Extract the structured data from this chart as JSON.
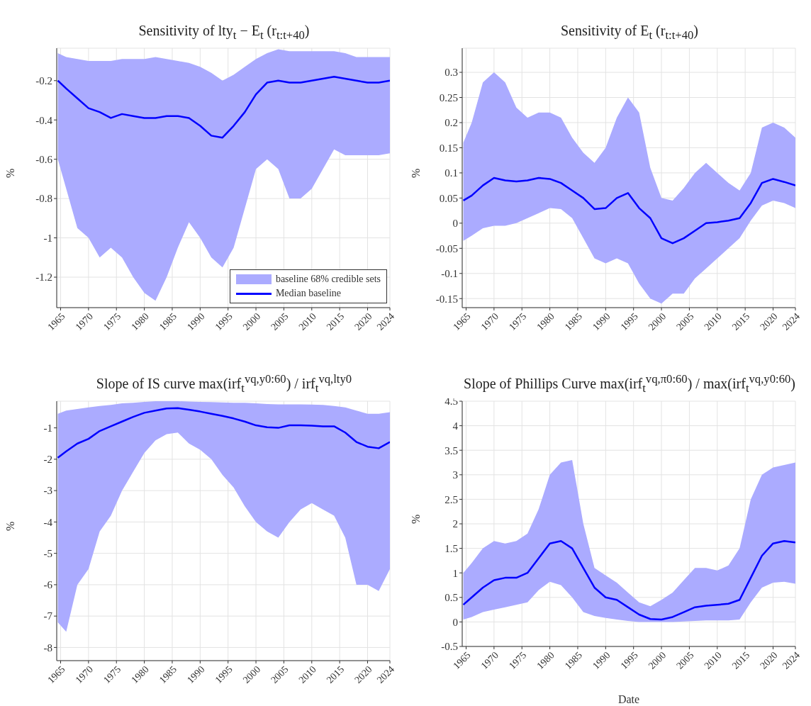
{
  "chart_data": [
    {
      "type": "line",
      "title": "Sensitivity of lty$_{t}$ − E$_{t}$ (r$_{t:t+40}$)",
      "ylabel": "%",
      "grid": true,
      "legend": "bottom right",
      "annotations": [
        "baseline 68% credible sets"
      ],
      "x": [
        1964.5,
        1966,
        1968,
        1970,
        1972,
        1974,
        1976,
        1978,
        1980,
        1982,
        1984,
        1986,
        1988,
        1990,
        1992,
        1994,
        1996,
        1998,
        2000,
        2002,
        2004,
        2006,
        2008,
        2010,
        2012,
        2014,
        2016,
        2018,
        2020,
        2022,
        2024
      ],
      "xlim": [
        1964.3,
        2024
      ],
      "xticks": [
        1965,
        1970,
        1975,
        1980,
        1985,
        1990,
        1995,
        2000,
        2005,
        2010,
        2015,
        2020,
        2024
      ],
      "ylim": [
        -1.355,
        -0.035
      ],
      "yticks": [
        -1.2,
        -1,
        -0.8,
        -0.6,
        -0.4,
        -0.2
      ],
      "series": [
        {
          "name": "Median baseline",
          "color": "#0000ff",
          "values": [
            -0.2,
            -0.24,
            -0.29,
            -0.34,
            -0.36,
            -0.39,
            -0.37,
            -0.38,
            -0.39,
            -0.39,
            -0.38,
            -0.38,
            -0.39,
            -0.43,
            -0.48,
            -0.49,
            -0.43,
            -0.36,
            -0.27,
            -0.21,
            -0.2,
            -0.21,
            -0.21,
            -0.2,
            -0.19,
            -0.18,
            -0.19,
            -0.2,
            -0.21,
            -0.21,
            -0.2
          ],
          "lower": [
            -0.6,
            -0.75,
            -0.95,
            -1.0,
            -1.1,
            -1.05,
            -1.1,
            -1.2,
            -1.28,
            -1.32,
            -1.2,
            -1.05,
            -0.92,
            -1.0,
            -1.1,
            -1.15,
            -1.05,
            -0.85,
            -0.65,
            -0.6,
            -0.65,
            -0.8,
            -0.8,
            -0.75,
            -0.65,
            -0.55,
            -0.58,
            -0.58,
            -0.58,
            -0.58,
            -0.57
          ],
          "upper": [
            -0.06,
            -0.08,
            -0.09,
            -0.1,
            -0.1,
            -0.1,
            -0.09,
            -0.09,
            -0.09,
            -0.08,
            -0.09,
            -0.1,
            -0.11,
            -0.13,
            -0.16,
            -0.2,
            -0.17,
            -0.13,
            -0.09,
            -0.06,
            -0.04,
            -0.05,
            -0.05,
            -0.05,
            -0.05,
            -0.05,
            -0.06,
            -0.08,
            -0.08,
            -0.08,
            -0.08
          ]
        }
      ]
    },
    {
      "type": "line",
      "title": "Sensitivity of E$_{t}$ (r$_{t:t+40}$)",
      "ylabel": "%",
      "grid": true,
      "x": [
        1964.5,
        1966,
        1968,
        1970,
        1972,
        1974,
        1976,
        1978,
        1980,
        1982,
        1984,
        1986,
        1988,
        1990,
        1992,
        1994,
        1996,
        1998,
        2000,
        2002,
        2004,
        2006,
        2008,
        2010,
        2012,
        2014,
        2016,
        2018,
        2020,
        2022,
        2024
      ],
      "xlim": [
        1964.3,
        2024
      ],
      "xticks": [
        1965,
        1970,
        1975,
        1980,
        1985,
        1990,
        1995,
        2000,
        2005,
        2010,
        2015,
        2020,
        2024
      ],
      "ylim": [
        -0.168,
        0.348
      ],
      "yticks": [
        -0.15,
        -0.1,
        -0.05,
        0,
        0.05,
        0.1,
        0.15,
        0.2,
        0.25,
        0.3
      ],
      "series": [
        {
          "color": "#0000ff",
          "values": [
            0.045,
            0.055,
            0.075,
            0.09,
            0.085,
            0.083,
            0.085,
            0.09,
            0.088,
            0.08,
            0.065,
            0.05,
            0.028,
            0.03,
            0.05,
            0.06,
            0.03,
            0.01,
            -0.03,
            -0.04,
            -0.03,
            -0.015,
            0,
            0.002,
            0.005,
            0.01,
            0.04,
            0.08,
            0.088,
            0.082,
            0.075
          ],
          "lower": [
            -0.035,
            -0.025,
            -0.01,
            -0.005,
            -0.005,
            0.0,
            0.01,
            0.02,
            0.03,
            0.028,
            0.01,
            -0.03,
            -0.07,
            -0.08,
            -0.07,
            -0.08,
            -0.12,
            -0.15,
            -0.16,
            -0.14,
            -0.14,
            -0.11,
            -0.09,
            -0.07,
            -0.05,
            -0.03,
            0.005,
            0.035,
            0.045,
            0.04,
            0.03
          ],
          "upper": [
            0.16,
            0.2,
            0.28,
            0.3,
            0.28,
            0.23,
            0.21,
            0.22,
            0.22,
            0.21,
            0.17,
            0.14,
            0.12,
            0.15,
            0.21,
            0.25,
            0.22,
            0.11,
            0.05,
            0.045,
            0.07,
            0.1,
            0.12,
            0.1,
            0.08,
            0.065,
            0.1,
            0.19,
            0.2,
            0.19,
            0.17
          ]
        }
      ]
    },
    {
      "type": "line",
      "title": "Slope of IS curve max(irf$_{t}$$^{vq,y0:60}$) / irf$_{t}$$^{vq,lty0}$",
      "ylabel": "%",
      "grid": true,
      "x": [
        1964.5,
        1966,
        1968,
        1970,
        1972,
        1974,
        1976,
        1978,
        1980,
        1982,
        1984,
        1986,
        1988,
        1990,
        1992,
        1994,
        1996,
        1998,
        2000,
        2002,
        2004,
        2006,
        2008,
        2010,
        2012,
        2014,
        2016,
        2018,
        2020,
        2022,
        2024
      ],
      "xlim": [
        1964.3,
        2024
      ],
      "xticks": [
        1965,
        1970,
        1975,
        1980,
        1985,
        1990,
        1995,
        2000,
        2005,
        2010,
        2015,
        2020,
        2024
      ],
      "ylim": [
        -8.42,
        -0.15
      ],
      "yticks": [
        -8,
        -7,
        -6,
        -5,
        -4,
        -3,
        -2,
        -1
      ],
      "series": [
        {
          "color": "#0000ff",
          "values": [
            -1.95,
            -1.75,
            -1.5,
            -1.35,
            -1.1,
            -0.95,
            -0.8,
            -0.65,
            -0.52,
            -0.45,
            -0.38,
            -0.37,
            -0.42,
            -0.48,
            -0.55,
            -0.62,
            -0.7,
            -0.8,
            -0.92,
            -0.98,
            -1.0,
            -0.92,
            -0.92,
            -0.93,
            -0.95,
            -0.95,
            -1.15,
            -1.45,
            -1.6,
            -1.65,
            -1.45
          ],
          "lower": [
            -7.2,
            -7.5,
            -6.0,
            -5.5,
            -4.3,
            -3.8,
            -3.0,
            -2.4,
            -1.8,
            -1.4,
            -1.2,
            -1.15,
            -1.5,
            -1.7,
            -2.0,
            -2.5,
            -2.9,
            -3.5,
            -4.0,
            -4.3,
            -4.5,
            -4.0,
            -3.6,
            -3.4,
            -3.6,
            -3.8,
            -4.5,
            -6.0,
            -6.0,
            -6.2,
            -5.5
          ],
          "upper": [
            -0.55,
            -0.45,
            -0.4,
            -0.35,
            -0.3,
            -0.27,
            -0.22,
            -0.2,
            -0.17,
            -0.15,
            -0.15,
            -0.15,
            -0.16,
            -0.17,
            -0.18,
            -0.19,
            -0.2,
            -0.2,
            -0.22,
            -0.24,
            -0.25,
            -0.25,
            -0.25,
            -0.26,
            -0.27,
            -0.3,
            -0.35,
            -0.45,
            -0.55,
            -0.55,
            -0.5
          ]
        }
      ]
    },
    {
      "type": "line",
      "title": "Slope of Phillips Curve max(irf$_{t}$$^{vq,π0:60}$) / max(irf$_{t}$$^{vq,y0:60}$)",
      "xlabel": "Date",
      "ylabel": "%",
      "grid": true,
      "x": [
        1964.5,
        1966,
        1968,
        1970,
        1972,
        1974,
        1976,
        1978,
        1980,
        1982,
        1984,
        1986,
        1988,
        1990,
        1992,
        1994,
        1996,
        1998,
        2000,
        2002,
        2004,
        2006,
        2008,
        2010,
        2012,
        2014,
        2016,
        2018,
        2020,
        2022,
        2024
      ],
      "xlim": [
        1964.3,
        2024
      ],
      "xticks": [
        1965,
        1970,
        1975,
        1980,
        1985,
        1990,
        1995,
        2000,
        2005,
        2010,
        2015,
        2020,
        2024
      ],
      "ylim": [
        -0.5,
        4.5
      ],
      "yticks": [
        -0.5,
        0,
        0.5,
        1,
        1.5,
        2,
        2.5,
        3,
        3.5,
        4,
        4.5
      ],
      "series": [
        {
          "color": "#0000ff",
          "values": [
            0.35,
            0.5,
            0.7,
            0.85,
            0.9,
            0.9,
            1.0,
            1.3,
            1.6,
            1.65,
            1.5,
            1.1,
            0.7,
            0.5,
            0.45,
            0.3,
            0.15,
            0.06,
            0.05,
            0.1,
            0.2,
            0.3,
            0.33,
            0.35,
            0.37,
            0.45,
            0.9,
            1.35,
            1.6,
            1.65,
            1.62
          ],
          "lower": [
            0.05,
            0.1,
            0.2,
            0.25,
            0.3,
            0.35,
            0.4,
            0.65,
            0.82,
            0.75,
            0.5,
            0.2,
            0.12,
            0.08,
            0.05,
            0.02,
            0.0,
            0.0,
            0.0,
            0.0,
            0.01,
            0.02,
            0.03,
            0.03,
            0.03,
            0.05,
            0.4,
            0.7,
            0.8,
            0.82,
            0.78
          ],
          "upper": [
            1.0,
            1.2,
            1.5,
            1.65,
            1.6,
            1.65,
            1.8,
            2.3,
            3.0,
            3.25,
            3.3,
            2.0,
            1.1,
            0.95,
            0.8,
            0.6,
            0.4,
            0.32,
            0.45,
            0.6,
            0.85,
            1.1,
            1.1,
            1.05,
            1.15,
            1.5,
            2.5,
            3.0,
            3.15,
            3.2,
            3.25
          ]
        }
      ]
    }
  ]
}
